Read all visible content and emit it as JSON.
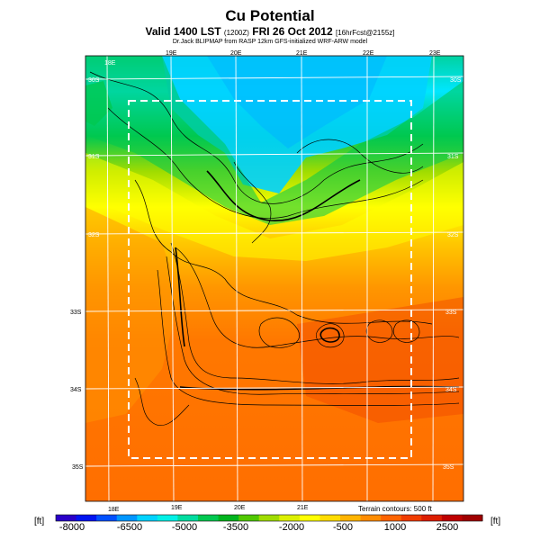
{
  "header": {
    "title": "Cu Potential",
    "subtitle_main": "Valid 1400 LST",
    "subtitle_small1": "(1200Z)",
    "subtitle_date": "FRI 26 Oct 2012",
    "subtitle_small2": "[16hrFcst@2155z]",
    "credit": "Dr.Jack BLIPMAP from RASP 12km GFS-initialized WRF-ARW model"
  },
  "map": {
    "lon_top": [
      "18E",
      "19E",
      "20E",
      "21E",
      "22E",
      "23E"
    ],
    "lon_bottom": [
      "18E",
      "19E",
      "20E",
      "21E"
    ],
    "lat_left": [
      "30S",
      "31S",
      "32S",
      "33S",
      "34S",
      "35S"
    ],
    "lat_right": [
      "30S",
      "31S",
      "32S",
      "33S",
      "34S",
      "35S"
    ]
  },
  "legend": {
    "unit_left": "[ft]",
    "unit_right": "[ft]",
    "terrain_note": "Terrain contours: 500 ft",
    "ticks": [
      "-8000",
      "-6500",
      "-5000",
      "-3500",
      "-2000",
      "-500",
      "1000",
      "2500"
    ],
    "colors": [
      "#2a00c8",
      "#0014f0",
      "#0050ff",
      "#0096ff",
      "#00d2ff",
      "#00f0e6",
      "#00dca0",
      "#00c850",
      "#00b41e",
      "#50c800",
      "#a0dc00",
      "#dcf000",
      "#ffff00",
      "#ffdc00",
      "#ffb400",
      "#ff8c00",
      "#ff6400",
      "#f03c00",
      "#dc1e00",
      "#be0000",
      "#a00000"
    ]
  }
}
